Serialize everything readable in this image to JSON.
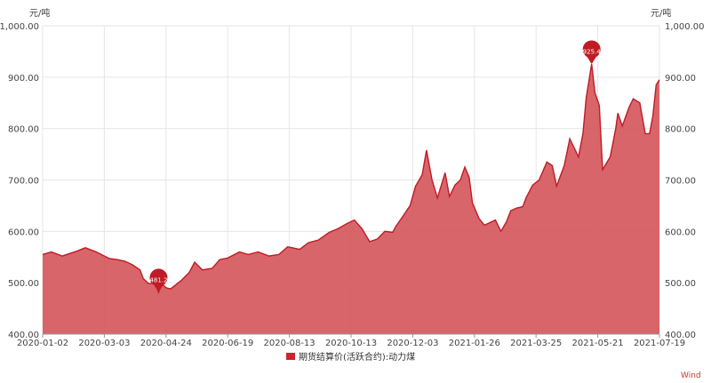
{
  "chart_data": {
    "type": "area",
    "yunit_left": "元/吨",
    "yunit_right": "元/吨",
    "ylim": [
      400,
      1000
    ],
    "yticks": [
      400,
      500,
      600,
      700,
      800,
      900,
      1000
    ],
    "ytick_labels": [
      "400.00",
      "500.00",
      "600.00",
      "700.00",
      "800.00",
      "900.00",
      "1,000.00"
    ],
    "xlim": [
      "2020-01-02",
      "2021-07-19"
    ],
    "xtick_labels": [
      "2020-01-02",
      "2020-03-03",
      "2020-04-24",
      "2020-06-19",
      "2020-08-13",
      "2020-10-13",
      "2020-12-03",
      "2021-01-26",
      "2021-03-25",
      "2021-05-21",
      "2021-07-19"
    ],
    "grid": true,
    "legend_position": "bottom",
    "series": [
      {
        "name": "期货结算价(活跃合约):动力煤",
        "color": "#c9252f",
        "points": [
          [
            "2020-01-02",
            555
          ],
          [
            "2020-01-10",
            560
          ],
          [
            "2020-01-20",
            552
          ],
          [
            "2020-02-03",
            562
          ],
          [
            "2020-02-10",
            568
          ],
          [
            "2020-02-20",
            560
          ],
          [
            "2020-03-03",
            547
          ],
          [
            "2020-03-10",
            545
          ],
          [
            "2020-03-17",
            542
          ],
          [
            "2020-03-24",
            535
          ],
          [
            "2020-03-31",
            525
          ],
          [
            "2020-04-03",
            508
          ],
          [
            "2020-04-08",
            498
          ],
          [
            "2020-04-14",
            500
          ],
          [
            "2020-04-17",
            481.2
          ],
          [
            "2020-04-20",
            498
          ],
          [
            "2020-04-24",
            490
          ],
          [
            "2020-04-28",
            488
          ],
          [
            "2020-05-08",
            505
          ],
          [
            "2020-05-15",
            520
          ],
          [
            "2020-05-20",
            540
          ],
          [
            "2020-05-27",
            525
          ],
          [
            "2020-06-05",
            528
          ],
          [
            "2020-06-12",
            545
          ],
          [
            "2020-06-19",
            548
          ],
          [
            "2020-06-30",
            560
          ],
          [
            "2020-07-08",
            555
          ],
          [
            "2020-07-17",
            560
          ],
          [
            "2020-07-27",
            552
          ],
          [
            "2020-08-05",
            555
          ],
          [
            "2020-08-13",
            570
          ],
          [
            "2020-08-24",
            565
          ],
          [
            "2020-09-01",
            578
          ],
          [
            "2020-09-10",
            583
          ],
          [
            "2020-09-20",
            598
          ],
          [
            "2020-09-28",
            605
          ],
          [
            "2020-10-06",
            615
          ],
          [
            "2020-10-13",
            622
          ],
          [
            "2020-10-20",
            605
          ],
          [
            "2020-10-27",
            580
          ],
          [
            "2020-11-03",
            585
          ],
          [
            "2020-11-10",
            600
          ],
          [
            "2020-11-17",
            598
          ],
          [
            "2020-11-20",
            610
          ],
          [
            "2020-11-26",
            628
          ],
          [
            "2020-12-03",
            650
          ],
          [
            "2020-12-08",
            688
          ],
          [
            "2020-12-14",
            710
          ],
          [
            "2020-12-18",
            758
          ],
          [
            "2020-12-23",
            700
          ],
          [
            "2020-12-28",
            665
          ],
          [
            "2021-01-04",
            714
          ],
          [
            "2021-01-08",
            668
          ],
          [
            "2021-01-13",
            690
          ],
          [
            "2021-01-18",
            700
          ],
          [
            "2021-01-22",
            725
          ],
          [
            "2021-01-26",
            705
          ],
          [
            "2021-01-29",
            655
          ],
          [
            "2021-02-04",
            625
          ],
          [
            "2021-02-09",
            612
          ],
          [
            "2021-02-19",
            622
          ],
          [
            "2021-02-24",
            600
          ],
          [
            "2021-03-01",
            618
          ],
          [
            "2021-03-05",
            640
          ],
          [
            "2021-03-10",
            645
          ],
          [
            "2021-03-16",
            648
          ],
          [
            "2021-03-19",
            665
          ],
          [
            "2021-03-25",
            690
          ],
          [
            "2021-03-31",
            700
          ],
          [
            "2021-04-07",
            735
          ],
          [
            "2021-04-12",
            728
          ],
          [
            "2021-04-16",
            688
          ],
          [
            "2021-04-23",
            728
          ],
          [
            "2021-04-28",
            780
          ],
          [
            "2021-05-06",
            745
          ],
          [
            "2021-05-10",
            790
          ],
          [
            "2021-05-13",
            860
          ],
          [
            "2021-05-18",
            925.4
          ],
          [
            "2021-05-21",
            870
          ],
          [
            "2021-05-25",
            845
          ],
          [
            "2021-05-28",
            720
          ],
          [
            "2021-06-04",
            745
          ],
          [
            "2021-06-09",
            800
          ],
          [
            "2021-06-11",
            830
          ],
          [
            "2021-06-15",
            805
          ],
          [
            "2021-06-21",
            840
          ],
          [
            "2021-06-25",
            858
          ],
          [
            "2021-07-01",
            850
          ],
          [
            "2021-07-06",
            790
          ],
          [
            "2021-07-10",
            790
          ],
          [
            "2021-07-13",
            825
          ],
          [
            "2021-07-16",
            885
          ],
          [
            "2021-07-19",
            895
          ]
        ]
      }
    ],
    "annotations": [
      {
        "type": "min",
        "date": "2020-04-17",
        "value": 481.2,
        "label": "481.2"
      },
      {
        "type": "max",
        "date": "2021-05-18",
        "value": 925.4,
        "label": "925.4"
      }
    ]
  },
  "legend": {
    "label": "期货结算价(活跃合约):动力煤"
  },
  "source": "Wind"
}
